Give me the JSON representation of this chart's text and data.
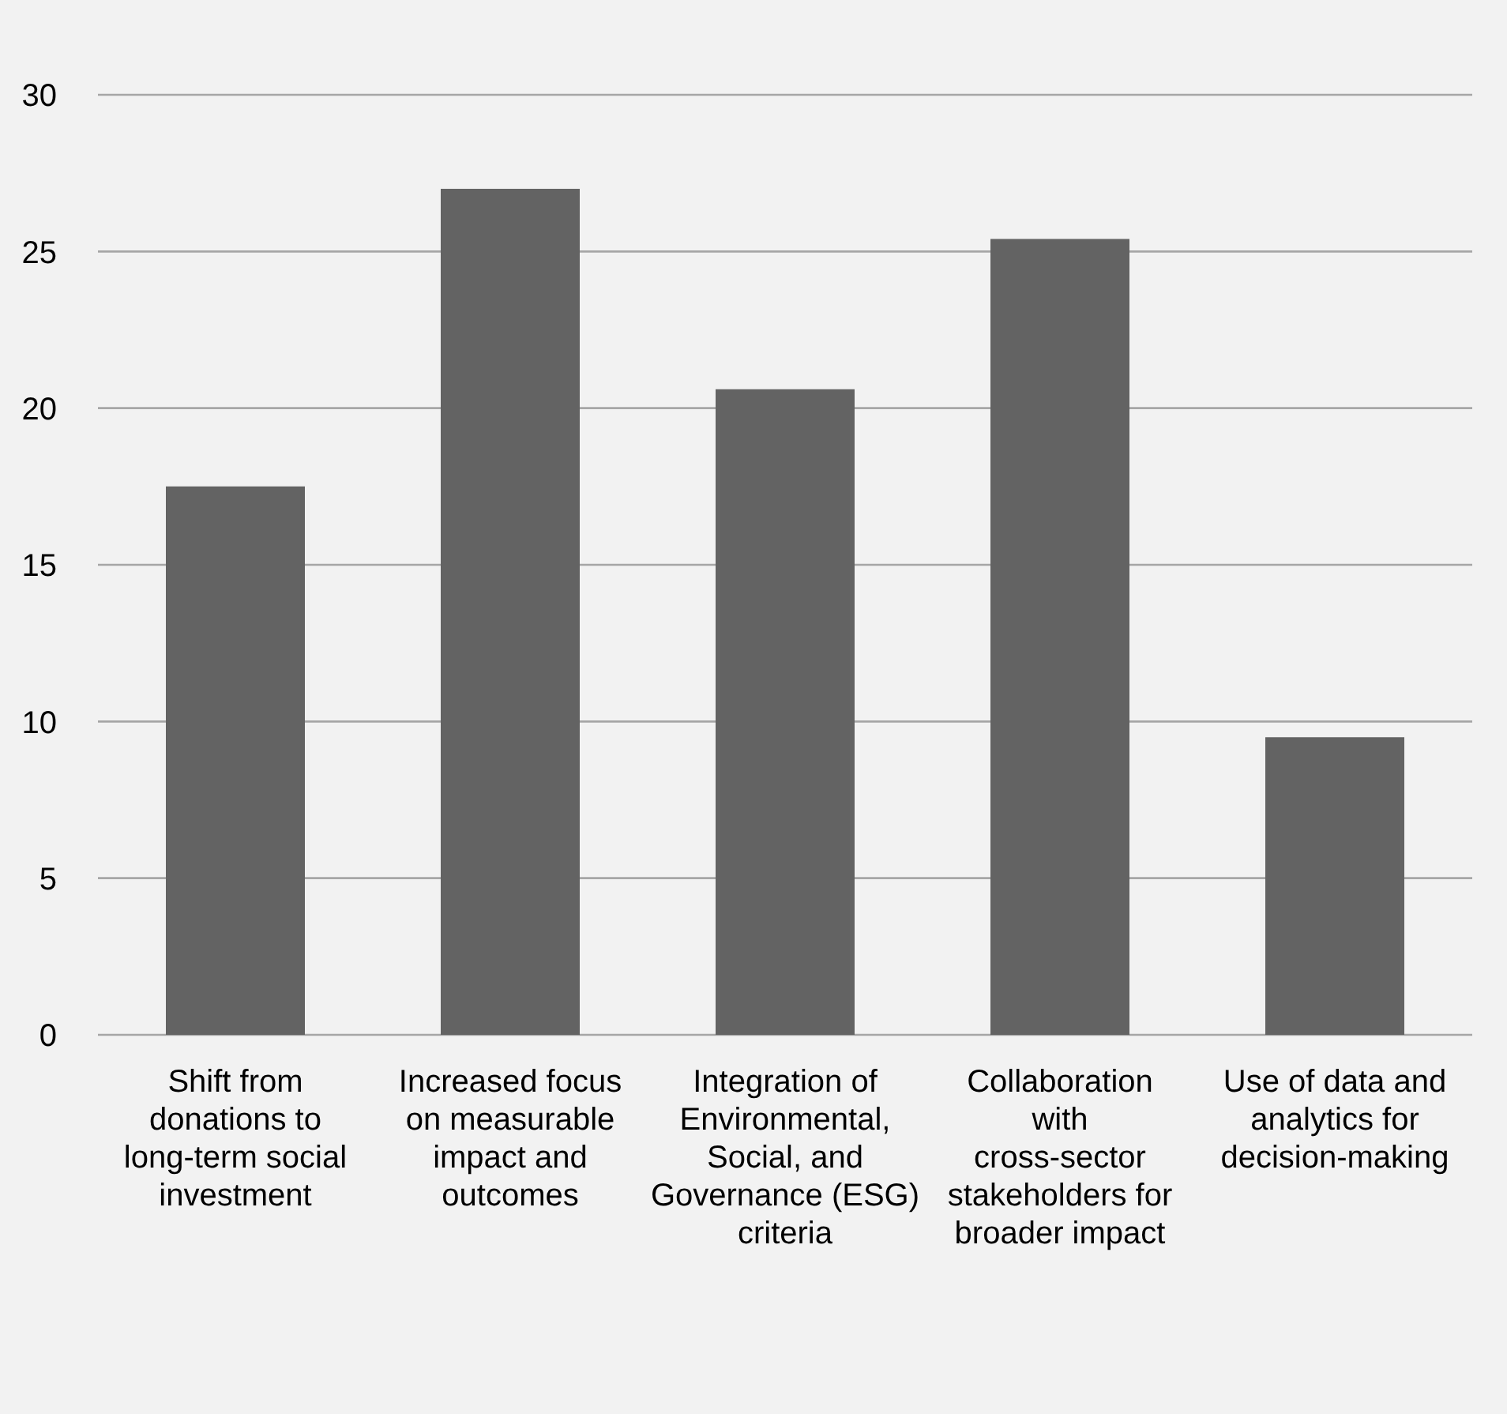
{
  "chart_data": {
    "type": "bar",
    "categories": [
      "Shift from donations to long-term social investment",
      "Increased focus on measurable impact and outcomes",
      "Integration of Environmental, Social, and Governance (ESG) criteria",
      "Collaboration with cross-sector stakeholders for broader impact",
      "Use of data and analytics for decision-making"
    ],
    "values": [
      17.5,
      27,
      20.6,
      25.4,
      9.5
    ],
    "color": "#636363",
    "ylim": [
      0,
      30
    ],
    "yticks": [
      0,
      5,
      10,
      15,
      20,
      25,
      30
    ],
    "grid": "y",
    "legend": false
  }
}
